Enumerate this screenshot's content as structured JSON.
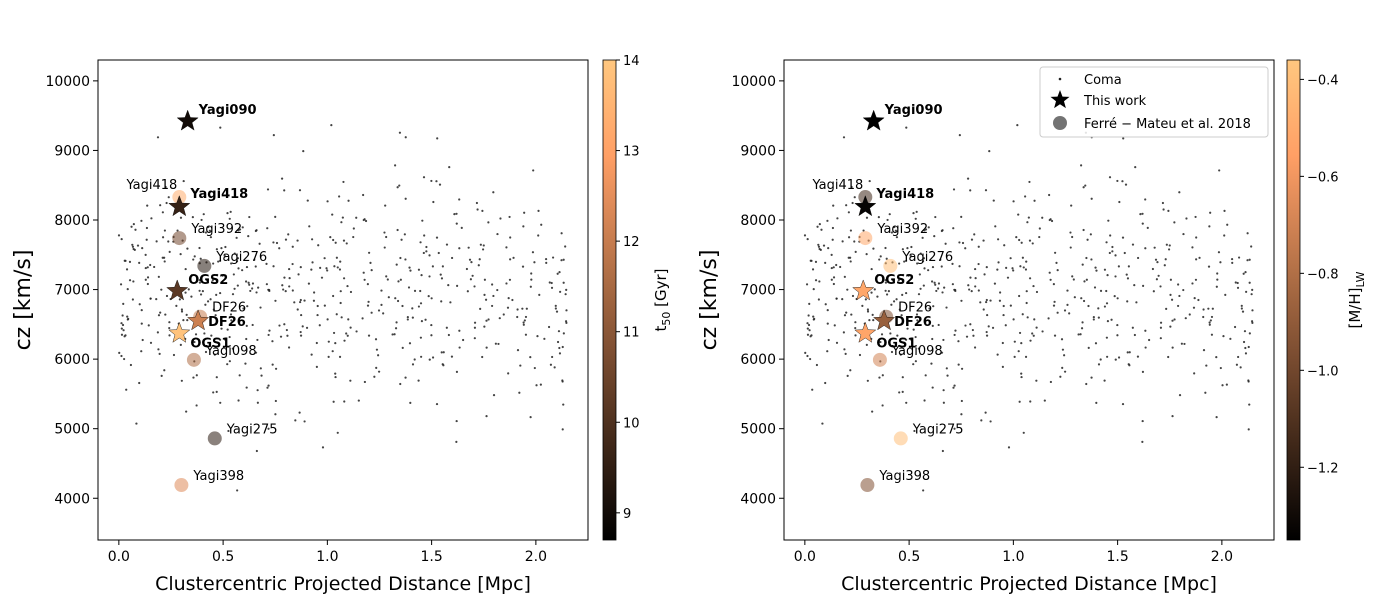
{
  "chart_data": [
    {
      "type": "scatter",
      "panel": "left",
      "xlabel": "Clustercentric Projected Distance [Mpc]",
      "ylabel": "cz [km/s]",
      "xlim": [
        -0.1,
        2.25
      ],
      "ylim": [
        3400,
        10300
      ],
      "xticks": [
        0.0,
        0.5,
        1.0,
        1.5,
        2.0
      ],
      "xtick_labels": [
        "0.0",
        "0.5",
        "1.0",
        "1.5",
        "2.0"
      ],
      "yticks": [
        4000,
        5000,
        6000,
        7000,
        8000,
        9000,
        10000
      ],
      "ytick_labels": [
        "4000",
        "5000",
        "6000",
        "7000",
        "8000",
        "9000",
        "10000"
      ],
      "colorbar": {
        "label": "t",
        "label_sub": "50",
        "label_suffix": " [Gyr]",
        "range": [
          8.7,
          14.0
        ],
        "ticks": [
          9,
          10,
          11,
          12,
          13,
          14
        ],
        "tick_labels": [
          "9",
          "10",
          "11",
          "12",
          "13",
          "14"
        ],
        "colormap": "copper"
      },
      "background_series": "Coma",
      "this_work": [
        {
          "label": "Yagi090",
          "x": 0.33,
          "y": 9420,
          "c": 9.0,
          "label_pos": "right"
        },
        {
          "label": "Yagi418",
          "x": 0.29,
          "y": 8190,
          "c": 9.6,
          "label_pos": "right"
        },
        {
          "label": "OGS2",
          "x": 0.28,
          "y": 6980,
          "c": 10.2,
          "label_pos": "right"
        },
        {
          "label": "DF26",
          "x": 0.38,
          "y": 6550,
          "c": 12.1,
          "label_pos": "right"
        },
        {
          "label": "OGS1",
          "x": 0.29,
          "y": 6370,
          "c": 13.9,
          "label_pos": "below"
        }
      ],
      "ferre_mateu": [
        {
          "label": "Yagi418",
          "x": 0.29,
          "y": 8330,
          "c": 13.3,
          "label_pos": "left"
        },
        {
          "label": "Yagi392",
          "x": 0.29,
          "y": 7740,
          "c": 10.6,
          "label_pos": "right"
        },
        {
          "label": "Yagi276",
          "x": 0.41,
          "y": 7340,
          "c": 9.3,
          "label_pos": "right"
        },
        {
          "label": "DF26",
          "x": 0.39,
          "y": 6610,
          "c": 12.0,
          "label_pos": "right"
        },
        {
          "label": "Yagi098",
          "x": 0.36,
          "y": 5990,
          "c": 11.6,
          "label_pos": "right"
        },
        {
          "label": "Yagi275",
          "x": 0.46,
          "y": 4860,
          "c": 9.4,
          "label_pos": "right"
        },
        {
          "label": "Yagi398",
          "x": 0.3,
          "y": 4190,
          "c": 12.4,
          "label_pos": "right"
        }
      ]
    },
    {
      "type": "scatter",
      "panel": "right",
      "xlabel": "Clustercentric Projected Distance [Mpc]",
      "ylabel": "cz [km/s]",
      "xlim": [
        -0.1,
        2.25
      ],
      "ylim": [
        3400,
        10300
      ],
      "xticks": [
        0.0,
        0.5,
        1.0,
        1.5,
        2.0
      ],
      "xtick_labels": [
        "0.0",
        "0.5",
        "1.0",
        "1.5",
        "2.0"
      ],
      "yticks": [
        4000,
        5000,
        6000,
        7000,
        8000,
        9000,
        10000
      ],
      "ytick_labels": [
        "4000",
        "5000",
        "6000",
        "7000",
        "8000",
        "9000",
        "10000"
      ],
      "colorbar": {
        "label": "[M/H]",
        "label_sub": "LW",
        "label_suffix": "",
        "range": [
          -1.35,
          -0.36
        ],
        "ticks": [
          -1.2,
          -1.0,
          -0.8,
          -0.6,
          -0.4
        ],
        "tick_labels": [
          "−1.2",
          "−1.0",
          "−0.8",
          "−0.6",
          "−0.4"
        ],
        "colormap": "copper"
      },
      "legend": {
        "position": "upper-right",
        "entries": [
          "Coma",
          "This work",
          "Ferré − Mateu et al.  2018"
        ]
      },
      "background_series": "Coma",
      "this_work": [
        {
          "label": "Yagi090",
          "x": 0.33,
          "y": 9420,
          "c": -1.35,
          "label_pos": "right"
        },
        {
          "label": "Yagi418",
          "x": 0.29,
          "y": 8190,
          "c": -1.33,
          "label_pos": "right"
        },
        {
          "label": "OGS2",
          "x": 0.28,
          "y": 6980,
          "c": -0.52,
          "label_pos": "right"
        },
        {
          "label": "DF26",
          "x": 0.38,
          "y": 6550,
          "c": -0.88,
          "label_pos": "right"
        },
        {
          "label": "OGS1",
          "x": 0.29,
          "y": 6370,
          "c": -0.53,
          "label_pos": "below"
        }
      ],
      "ferre_mateu": [
        {
          "label": "Yagi418",
          "x": 0.29,
          "y": 8330,
          "c": -1.15,
          "label_pos": "left"
        },
        {
          "label": "Yagi392",
          "x": 0.29,
          "y": 7740,
          "c": -0.52,
          "label_pos": "right"
        },
        {
          "label": "Yagi276",
          "x": 0.41,
          "y": 7340,
          "c": -0.4,
          "label_pos": "right"
        },
        {
          "label": "DF26",
          "x": 0.39,
          "y": 6610,
          "c": -0.95,
          "label_pos": "right"
        },
        {
          "label": "Yagi098",
          "x": 0.36,
          "y": 5990,
          "c": -0.7,
          "label_pos": "right"
        },
        {
          "label": "Yagi275",
          "x": 0.46,
          "y": 4860,
          "c": -0.4,
          "label_pos": "right"
        },
        {
          "label": "Yagi398",
          "x": 0.3,
          "y": 4190,
          "c": -0.95,
          "label_pos": "right"
        }
      ]
    }
  ]
}
